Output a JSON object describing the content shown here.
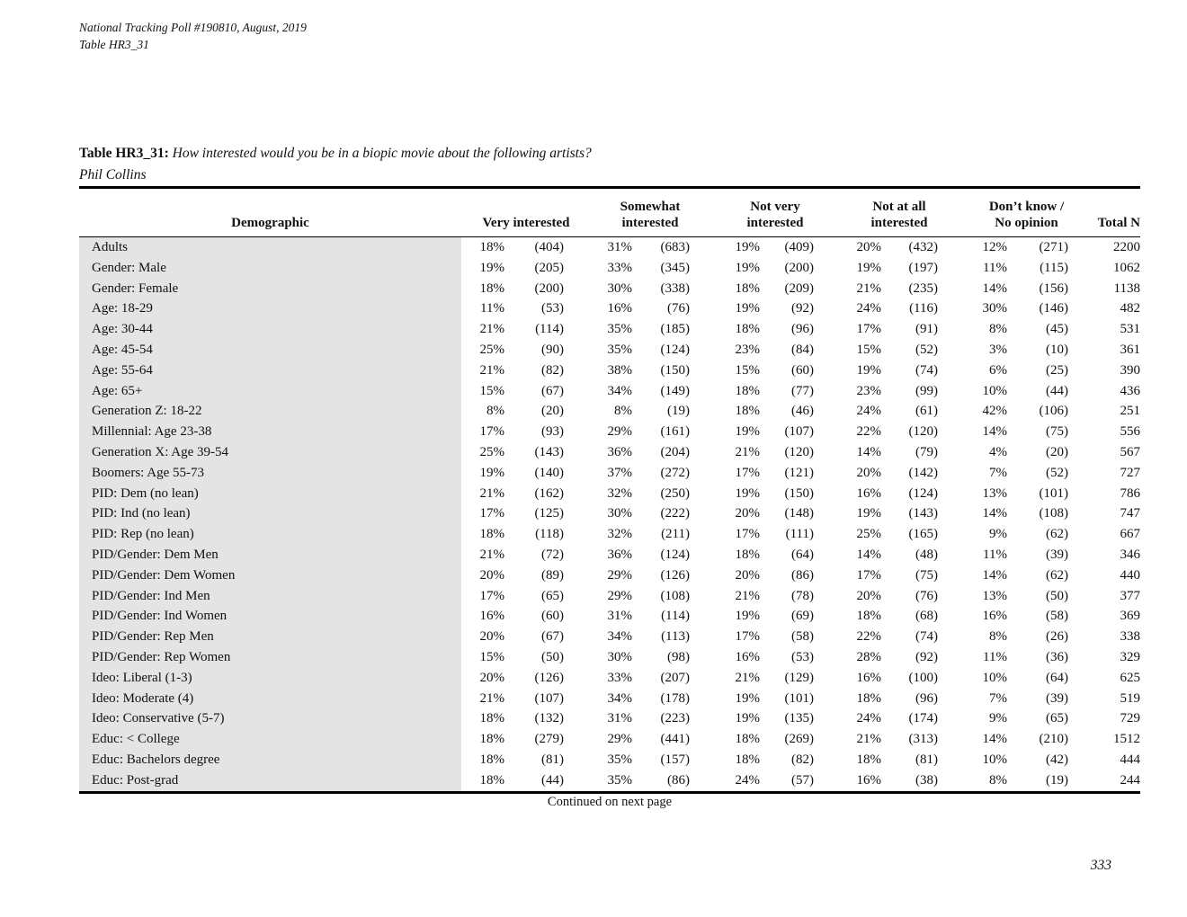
{
  "page_header": {
    "line1": "National Tracking Poll #190810, August, 2019",
    "line2": "Table HR3_31"
  },
  "title": {
    "label": "Table HR3_31:",
    "question": "How interested would you be in a biopic movie about the following artists?",
    "subject": "Phil Collins"
  },
  "table": {
    "header": {
      "demographic": "Demographic",
      "groups": [
        {
          "line1": "",
          "line2": "Very interested"
        },
        {
          "line1": "Somewhat",
          "line2": "interested"
        },
        {
          "line1": "Not very",
          "line2": "interested"
        },
        {
          "line1": "Not at all",
          "line2": "interested"
        },
        {
          "line1": "Don’t know /",
          "line2": "No opinion"
        }
      ],
      "total": "Total N"
    },
    "rows": [
      [
        "Adults",
        "18%",
        "(404)",
        "31%",
        "(683)",
        "19%",
        "(409)",
        "20%",
        "(432)",
        "12%",
        "(271)",
        "2200"
      ],
      [
        "Gender: Male",
        "19%",
        "(205)",
        "33%",
        "(345)",
        "19%",
        "(200)",
        "19%",
        "(197)",
        "11%",
        "(115)",
        "1062"
      ],
      [
        "Gender: Female",
        "18%",
        "(200)",
        "30%",
        "(338)",
        "18%",
        "(209)",
        "21%",
        "(235)",
        "14%",
        "(156)",
        "1138"
      ],
      [
        "Age: 18-29",
        "11%",
        "(53)",
        "16%",
        "(76)",
        "19%",
        "(92)",
        "24%",
        "(116)",
        "30%",
        "(146)",
        "482"
      ],
      [
        "Age: 30-44",
        "21%",
        "(114)",
        "35%",
        "(185)",
        "18%",
        "(96)",
        "17%",
        "(91)",
        "8%",
        "(45)",
        "531"
      ],
      [
        "Age: 45-54",
        "25%",
        "(90)",
        "35%",
        "(124)",
        "23%",
        "(84)",
        "15%",
        "(52)",
        "3%",
        "(10)",
        "361"
      ],
      [
        "Age: 55-64",
        "21%",
        "(82)",
        "38%",
        "(150)",
        "15%",
        "(60)",
        "19%",
        "(74)",
        "6%",
        "(25)",
        "390"
      ],
      [
        "Age: 65+",
        "15%",
        "(67)",
        "34%",
        "(149)",
        "18%",
        "(77)",
        "23%",
        "(99)",
        "10%",
        "(44)",
        "436"
      ],
      [
        "Generation Z: 18-22",
        "8%",
        "(20)",
        "8%",
        "(19)",
        "18%",
        "(46)",
        "24%",
        "(61)",
        "42%",
        "(106)",
        "251"
      ],
      [
        "Millennial: Age 23-38",
        "17%",
        "(93)",
        "29%",
        "(161)",
        "19%",
        "(107)",
        "22%",
        "(120)",
        "14%",
        "(75)",
        "556"
      ],
      [
        "Generation X: Age 39-54",
        "25%",
        "(143)",
        "36%",
        "(204)",
        "21%",
        "(120)",
        "14%",
        "(79)",
        "4%",
        "(20)",
        "567"
      ],
      [
        "Boomers: Age 55-73",
        "19%",
        "(140)",
        "37%",
        "(272)",
        "17%",
        "(121)",
        "20%",
        "(142)",
        "7%",
        "(52)",
        "727"
      ],
      [
        "PID: Dem (no lean)",
        "21%",
        "(162)",
        "32%",
        "(250)",
        "19%",
        "(150)",
        "16%",
        "(124)",
        "13%",
        "(101)",
        "786"
      ],
      [
        "PID: Ind (no lean)",
        "17%",
        "(125)",
        "30%",
        "(222)",
        "20%",
        "(148)",
        "19%",
        "(143)",
        "14%",
        "(108)",
        "747"
      ],
      [
        "PID: Rep (no lean)",
        "18%",
        "(118)",
        "32%",
        "(211)",
        "17%",
        "(111)",
        "25%",
        "(165)",
        "9%",
        "(62)",
        "667"
      ],
      [
        "PID/Gender: Dem Men",
        "21%",
        "(72)",
        "36%",
        "(124)",
        "18%",
        "(64)",
        "14%",
        "(48)",
        "11%",
        "(39)",
        "346"
      ],
      [
        "PID/Gender: Dem Women",
        "20%",
        "(89)",
        "29%",
        "(126)",
        "20%",
        "(86)",
        "17%",
        "(75)",
        "14%",
        "(62)",
        "440"
      ],
      [
        "PID/Gender: Ind Men",
        "17%",
        "(65)",
        "29%",
        "(108)",
        "21%",
        "(78)",
        "20%",
        "(76)",
        "13%",
        "(50)",
        "377"
      ],
      [
        "PID/Gender: Ind Women",
        "16%",
        "(60)",
        "31%",
        "(114)",
        "19%",
        "(69)",
        "18%",
        "(68)",
        "16%",
        "(58)",
        "369"
      ],
      [
        "PID/Gender: Rep Men",
        "20%",
        "(67)",
        "34%",
        "(113)",
        "17%",
        "(58)",
        "22%",
        "(74)",
        "8%",
        "(26)",
        "338"
      ],
      [
        "PID/Gender: Rep Women",
        "15%",
        "(50)",
        "30%",
        "(98)",
        "16%",
        "(53)",
        "28%",
        "(92)",
        "11%",
        "(36)",
        "329"
      ],
      [
        "Ideo: Liberal (1-3)",
        "20%",
        "(126)",
        "33%",
        "(207)",
        "21%",
        "(129)",
        "16%",
        "(100)",
        "10%",
        "(64)",
        "625"
      ],
      [
        "Ideo: Moderate (4)",
        "21%",
        "(107)",
        "34%",
        "(178)",
        "19%",
        "(101)",
        "18%",
        "(96)",
        "7%",
        "(39)",
        "519"
      ],
      [
        "Ideo: Conservative (5-7)",
        "18%",
        "(132)",
        "31%",
        "(223)",
        "19%",
        "(135)",
        "24%",
        "(174)",
        "9%",
        "(65)",
        "729"
      ],
      [
        "Educ: < College",
        "18%",
        "(279)",
        "29%",
        "(441)",
        "18%",
        "(269)",
        "21%",
        "(313)",
        "14%",
        "(210)",
        "1512"
      ],
      [
        "Educ: Bachelors degree",
        "18%",
        "(81)",
        "35%",
        "(157)",
        "18%",
        "(82)",
        "18%",
        "(81)",
        "10%",
        "(42)",
        "444"
      ],
      [
        "Educ: Post-grad",
        "18%",
        "(44)",
        "35%",
        "(86)",
        "24%",
        "(57)",
        "16%",
        "(38)",
        "8%",
        "(19)",
        "244"
      ]
    ]
  },
  "footer": {
    "continued": "Continued on next page",
    "page_number": "333"
  }
}
